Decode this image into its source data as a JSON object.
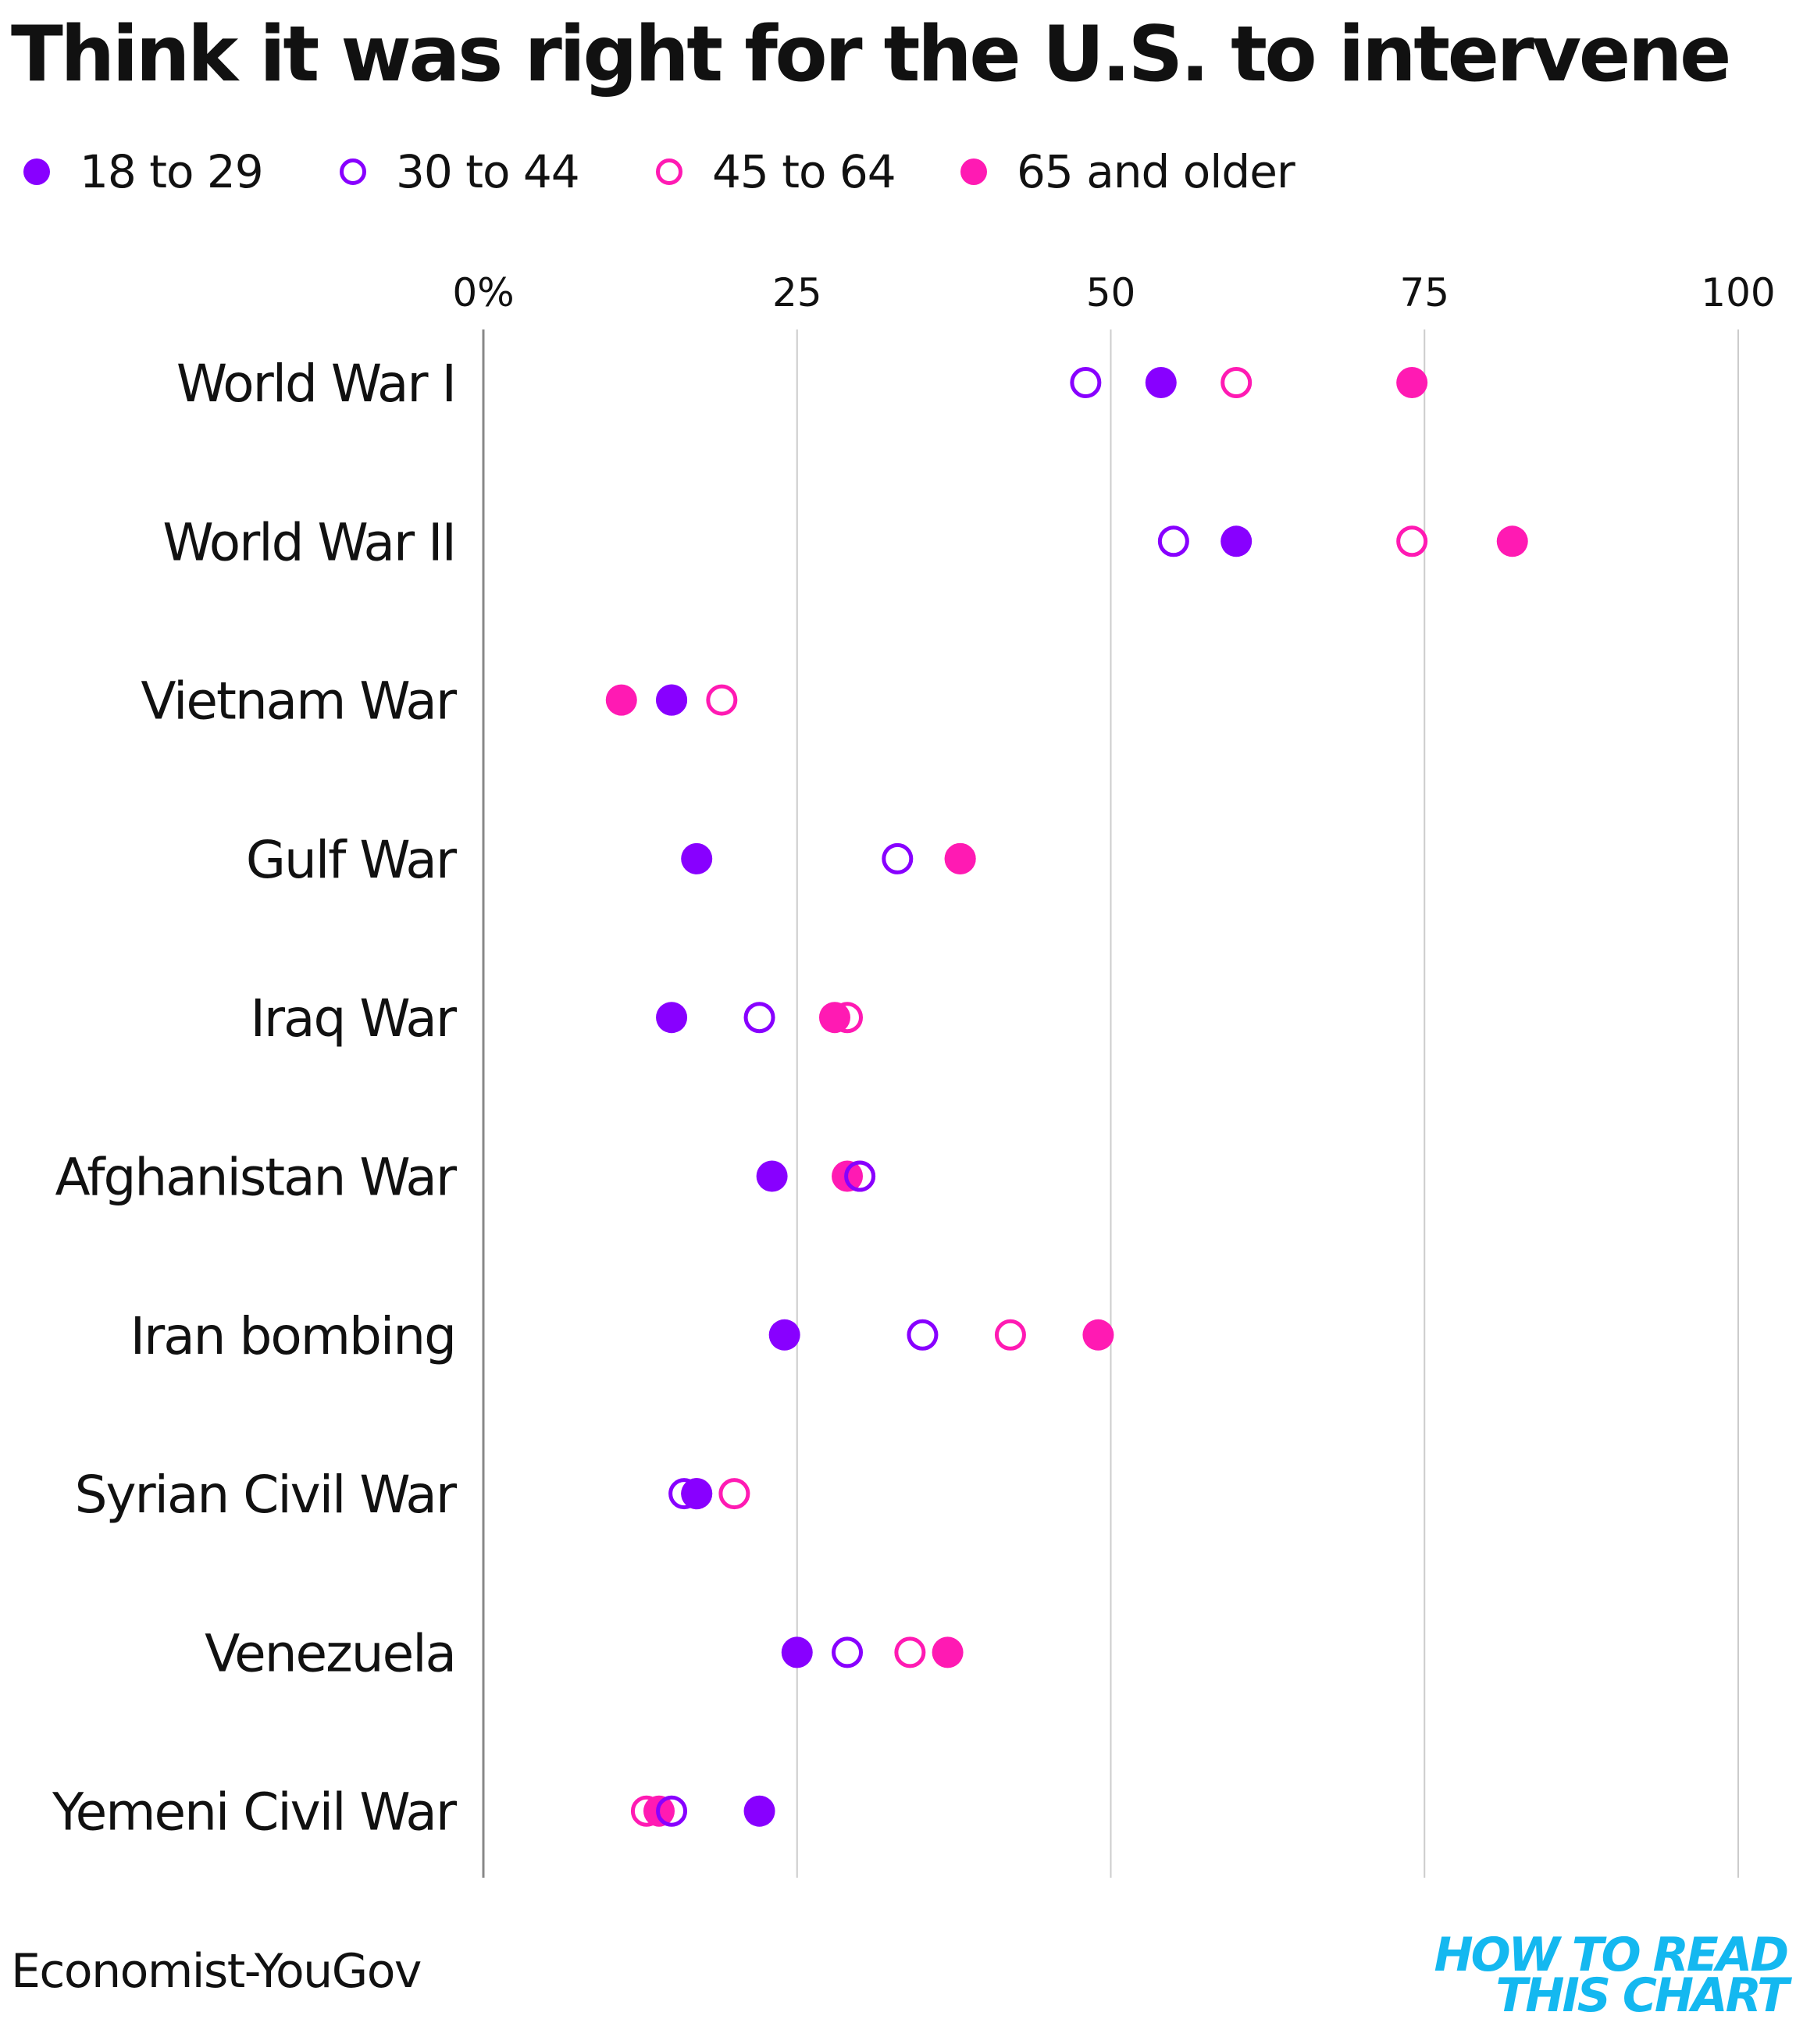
{
  "chart_data": {
    "type": "scatter",
    "title": "Think it was right for the U.S. to intervene",
    "xlabel": "",
    "ylabel": "",
    "xlim": [
      0,
      100
    ],
    "x_ticks": [
      "0%",
      "25",
      "50",
      "75",
      "100"
    ],
    "x_tick_values": [
      0,
      25,
      50,
      75,
      100
    ],
    "grid": true,
    "legend_position": "top-left",
    "categories": [
      "World War I",
      "World War II",
      "Vietnam War",
      "Gulf War",
      "Iraq War",
      "Afghanistan War",
      "Iran bombing",
      "Syrian Civil War",
      "Venezuela",
      "Yemeni Civil War"
    ],
    "series": [
      {
        "name": "18 to 29",
        "color": "#8800ff",
        "marker": "filled",
        "values": [
          54,
          60,
          15,
          17,
          15,
          23,
          24,
          17,
          25,
          22
        ]
      },
      {
        "name": "30 to 44",
        "color": "#8800ff",
        "marker": "hollow",
        "values": [
          48,
          55,
          15,
          33,
          22,
          30,
          35,
          16,
          29,
          15
        ]
      },
      {
        "name": "45 to 64",
        "color": "#ff1ab3",
        "marker": "hollow",
        "values": [
          60,
          74,
          19,
          38,
          29,
          30,
          42,
          20,
          34,
          13
        ]
      },
      {
        "name": "65 and older",
        "color": "#ff1ab3",
        "marker": "filled",
        "values": [
          74,
          82,
          11,
          38,
          28,
          29,
          49,
          17,
          37,
          14
        ]
      }
    ]
  },
  "footer": {
    "source": "Economist-YouGov",
    "brand_line1": "HOW TO READ",
    "brand_line2": "THIS CHART"
  },
  "colors": {
    "purple": "#8800ff",
    "magenta": "#ff1ab3",
    "brand": "#14b8f0",
    "grid": "#cccccc",
    "axis": "#888888"
  }
}
